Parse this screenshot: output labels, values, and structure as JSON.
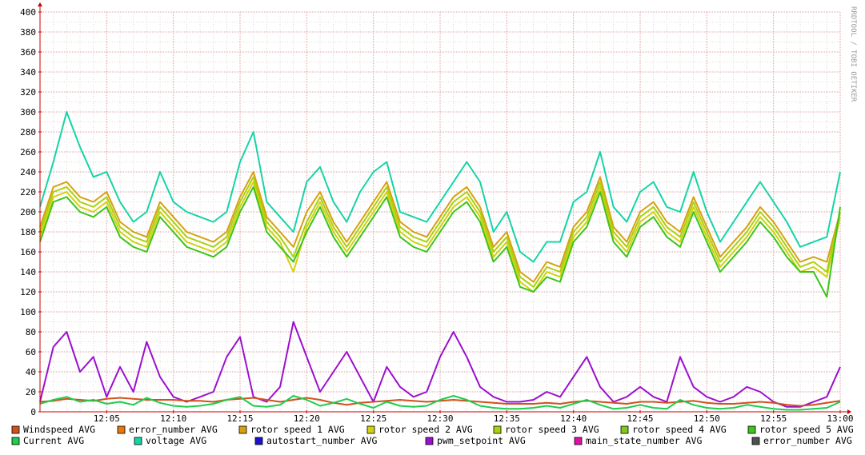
{
  "chart_data": {
    "type": "line",
    "watermark": "RRDTOOL / TOBI OETIKER",
    "ylim": [
      0,
      400
    ],
    "y_ticks": [
      0,
      20,
      40,
      60,
      80,
      100,
      120,
      140,
      160,
      180,
      200,
      220,
      240,
      260,
      280,
      300,
      320,
      340,
      360,
      380,
      400
    ],
    "y_tick_labels": [
      "0",
      "20",
      "40",
      "60",
      "80",
      "100",
      "120",
      "140",
      "160",
      "180",
      "200",
      "220",
      "240",
      "260",
      "280",
      "300",
      "320",
      "340",
      "360",
      "380",
      "400"
    ],
    "x_range_minutes": [
      0,
      60
    ],
    "x_ticks": [
      5,
      10,
      15,
      20,
      25,
      30,
      35,
      40,
      45,
      50,
      55,
      60
    ],
    "x_tick_labels": [
      "12:05",
      "12:10",
      "12:15",
      "12:20",
      "12:25",
      "12:30",
      "12:35",
      "12:40",
      "12:45",
      "12:50",
      "12:55",
      "13:00"
    ],
    "grid": true,
    "legend_position": "bottom",
    "legend": [
      {
        "label": "Windspeed AVG",
        "color": "#d2501e"
      },
      {
        "label": "error_number AVG",
        "color": "#e87510"
      },
      {
        "label": "rotor speed 1 AVG",
        "color": "#d6a10e"
      },
      {
        "label": "rotor speed 2 AVG",
        "color": "#d1d10f"
      },
      {
        "label": "rotor speed 3 AVG",
        "color": "#a9d10e"
      },
      {
        "label": "rotor speed 4 AVG",
        "color": "#7ccb14"
      },
      {
        "label": "rotor speed 5 AVG",
        "color": "#3ec41a"
      },
      {
        "label": "Current AVG",
        "color": "#1fcc4c"
      },
      {
        "label": "voltage AVG",
        "color": "#14d4a6"
      },
      {
        "label": "autostart_number AVG",
        "color": "#1f10cf"
      },
      {
        "label": "pwm_setpoint AVG",
        "color": "#9b10cf"
      },
      {
        "label": "main_state_number AVG",
        "color": "#e010a6"
      },
      {
        "label": "error_number AVG",
        "color": "#505050"
      }
    ],
    "series": [
      {
        "name": "voltage AVG",
        "color": "#14d4a6",
        "x": [
          0,
          1,
          2,
          3,
          4,
          5,
          6,
          7,
          8,
          9,
          10,
          11,
          12,
          13,
          14,
          15,
          16,
          17,
          18,
          19,
          20,
          21,
          22,
          23,
          24,
          25,
          26,
          27,
          28,
          29,
          30,
          31,
          32,
          33,
          34,
          35,
          36,
          37,
          38,
          39,
          40,
          41,
          42,
          43,
          44,
          45,
          46,
          47,
          48,
          49,
          50,
          51,
          52,
          53,
          54,
          55,
          56,
          57,
          58,
          59,
          60
        ],
        "values": [
          205,
          250,
          300,
          265,
          235,
          240,
          210,
          190,
          200,
          240,
          210,
          200,
          195,
          190,
          200,
          250,
          280,
          210,
          195,
          180,
          230,
          245,
          210,
          190,
          220,
          240,
          250,
          200,
          195,
          190,
          210,
          230,
          250,
          230,
          180,
          200,
          160,
          150,
          170,
          170,
          210,
          220,
          260,
          205,
          190,
          220,
          230,
          205,
          200,
          240,
          200,
          170,
          190,
          210,
          230,
          210,
          190,
          165,
          170,
          175,
          240
        ]
      },
      {
        "name": "rotor speed 1 AVG",
        "color": "#d6a10e",
        "x": [
          0,
          1,
          2,
          3,
          4,
          5,
          6,
          7,
          8,
          9,
          10,
          11,
          12,
          13,
          14,
          15,
          16,
          17,
          18,
          19,
          20,
          21,
          22,
          23,
          24,
          25,
          26,
          27,
          28,
          29,
          30,
          31,
          32,
          33,
          34,
          35,
          36,
          37,
          38,
          39,
          40,
          41,
          42,
          43,
          44,
          45,
          46,
          47,
          48,
          49,
          50,
          51,
          52,
          53,
          54,
          55,
          56,
          57,
          58,
          59,
          60
        ],
        "values": [
          185,
          225,
          230,
          215,
          210,
          220,
          190,
          180,
          175,
          210,
          195,
          180,
          175,
          170,
          180,
          215,
          240,
          195,
          180,
          165,
          200,
          220,
          190,
          170,
          190,
          210,
          230,
          190,
          180,
          175,
          195,
          215,
          225,
          205,
          165,
          180,
          140,
          130,
          150,
          145,
          185,
          200,
          235,
          185,
          170,
          200,
          210,
          190,
          180,
          215,
          185,
          155,
          170,
          185,
          205,
          190,
          170,
          150,
          155,
          150,
          200
        ]
      },
      {
        "name": "rotor speed 2 AVG",
        "color": "#d1d10f",
        "x": [
          0,
          1,
          2,
          3,
          4,
          5,
          6,
          7,
          8,
          9,
          10,
          11,
          12,
          13,
          14,
          15,
          16,
          17,
          18,
          19,
          20,
          21,
          22,
          23,
          24,
          25,
          26,
          27,
          28,
          29,
          30,
          31,
          32,
          33,
          34,
          35,
          36,
          37,
          38,
          39,
          40,
          41,
          42,
          43,
          44,
          45,
          46,
          47,
          48,
          49,
          50,
          51,
          52,
          53,
          54,
          55,
          56,
          57,
          58,
          59,
          60
        ],
        "values": [
          175,
          215,
          220,
          205,
          200,
          210,
          180,
          170,
          165,
          200,
          185,
          170,
          165,
          160,
          170,
          205,
          230,
          185,
          170,
          140,
          185,
          210,
          180,
          160,
          180,
          200,
          220,
          180,
          170,
          165,
          185,
          205,
          215,
          195,
          155,
          170,
          130,
          120,
          140,
          135,
          175,
          190,
          225,
          175,
          160,
          190,
          200,
          180,
          170,
          205,
          175,
          145,
          160,
          175,
          195,
          180,
          160,
          140,
          145,
          135,
          195
        ]
      },
      {
        "name": "rotor speed 3 AVG",
        "color": "#a9d10e",
        "x": [
          0,
          1,
          2,
          3,
          4,
          5,
          6,
          7,
          8,
          9,
          10,
          11,
          12,
          13,
          14,
          15,
          16,
          17,
          18,
          19,
          20,
          21,
          22,
          23,
          24,
          25,
          26,
          27,
          28,
          29,
          30,
          31,
          32,
          33,
          34,
          35,
          36,
          37,
          38,
          39,
          40,
          41,
          42,
          43,
          44,
          45,
          46,
          47,
          48,
          49,
          50,
          51,
          52,
          53,
          54,
          55,
          56,
          57,
          58,
          59,
          60
        ],
        "values": [
          180,
          220,
          225,
          210,
          205,
          215,
          185,
          175,
          170,
          205,
          190,
          175,
          170,
          165,
          175,
          210,
          235,
          190,
          175,
          155,
          190,
          215,
          185,
          165,
          185,
          205,
          225,
          185,
          175,
          170,
          190,
          210,
          220,
          200,
          160,
          175,
          135,
          125,
          145,
          140,
          180,
          195,
          230,
          180,
          165,
          195,
          205,
          185,
          175,
          210,
          180,
          150,
          165,
          180,
          200,
          185,
          165,
          145,
          150,
          140,
          200
        ]
      },
      {
        "name": "rotor speed 5 AVG",
        "color": "#3ec41a",
        "x": [
          0,
          1,
          2,
          3,
          4,
          5,
          6,
          7,
          8,
          9,
          10,
          11,
          12,
          13,
          14,
          15,
          16,
          17,
          18,
          19,
          20,
          21,
          22,
          23,
          24,
          25,
          26,
          27,
          28,
          29,
          30,
          31,
          32,
          33,
          34,
          35,
          36,
          37,
          38,
          39,
          40,
          41,
          42,
          43,
          44,
          45,
          46,
          47,
          48,
          49,
          50,
          51,
          52,
          53,
          54,
          55,
          56,
          57,
          58,
          59,
          60
        ],
        "values": [
          170,
          210,
          215,
          200,
          195,
          205,
          175,
          165,
          160,
          195,
          180,
          165,
          160,
          155,
          165,
          200,
          225,
          180,
          165,
          150,
          180,
          205,
          175,
          155,
          175,
          195,
          215,
          175,
          165,
          160,
          180,
          200,
          210,
          190,
          150,
          165,
          125,
          120,
          135,
          130,
          170,
          185,
          220,
          170,
          155,
          185,
          195,
          175,
          165,
          200,
          170,
          140,
          155,
          170,
          190,
          175,
          155,
          140,
          140,
          115,
          205
        ]
      },
      {
        "name": "pwm_setpoint AVG",
        "color": "#9b10cf",
        "x": [
          0,
          1,
          2,
          3,
          4,
          5,
          6,
          7,
          8,
          9,
          10,
          11,
          12,
          13,
          14,
          15,
          16,
          17,
          18,
          19,
          20,
          21,
          22,
          23,
          24,
          25,
          26,
          27,
          28,
          29,
          30,
          31,
          32,
          33,
          34,
          35,
          36,
          37,
          38,
          39,
          40,
          41,
          42,
          43,
          44,
          45,
          46,
          47,
          48,
          49,
          50,
          51,
          52,
          53,
          54,
          55,
          56,
          57,
          58,
          59,
          60
        ],
        "values": [
          10,
          65,
          80,
          40,
          55,
          15,
          45,
          20,
          70,
          35,
          15,
          10,
          15,
          20,
          55,
          75,
          15,
          10,
          25,
          90,
          55,
          20,
          40,
          60,
          35,
          10,
          45,
          25,
          15,
          20,
          55,
          80,
          55,
          25,
          15,
          10,
          10,
          12,
          20,
          15,
          35,
          55,
          25,
          10,
          15,
          25,
          15,
          10,
          55,
          25,
          15,
          10,
          15,
          25,
          20,
          10,
          5,
          5,
          10,
          15,
          45
        ]
      },
      {
        "name": "Windspeed AVG",
        "color": "#d2501e",
        "x": [
          0,
          1,
          2,
          3,
          4,
          5,
          6,
          7,
          8,
          9,
          10,
          11,
          12,
          13,
          14,
          15,
          16,
          17,
          18,
          19,
          20,
          21,
          22,
          23,
          24,
          25,
          26,
          27,
          28,
          29,
          30,
          31,
          32,
          33,
          34,
          35,
          36,
          37,
          38,
          39,
          40,
          41,
          42,
          43,
          44,
          45,
          46,
          47,
          48,
          49,
          50,
          51,
          52,
          53,
          54,
          55,
          56,
          57,
          58,
          59,
          60
        ],
        "values": [
          10,
          11,
          13,
          12,
          11,
          13,
          14,
          13,
          12,
          12,
          12,
          11,
          11,
          10,
          12,
          13,
          14,
          12,
          10,
          12,
          14,
          12,
          9,
          7,
          9,
          10,
          11,
          12,
          11,
          10,
          11,
          12,
          11,
          10,
          9,
          8,
          8,
          8,
          9,
          8,
          10,
          11,
          10,
          9,
          8,
          10,
          10,
          9,
          10,
          11,
          9,
          8,
          8,
          9,
          10,
          9,
          7,
          6,
          7,
          9,
          11
        ]
      },
      {
        "name": "Current AVG",
        "color": "#1fcc4c",
        "x": [
          0,
          1,
          2,
          3,
          4,
          5,
          6,
          7,
          8,
          9,
          10,
          11,
          12,
          13,
          14,
          15,
          16,
          17,
          18,
          19,
          20,
          21,
          22,
          23,
          24,
          25,
          26,
          27,
          28,
          29,
          30,
          31,
          32,
          33,
          34,
          35,
          36,
          37,
          38,
          39,
          40,
          41,
          42,
          43,
          44,
          45,
          46,
          47,
          48,
          49,
          50,
          51,
          52,
          53,
          54,
          55,
          56,
          57,
          58,
          59,
          60
        ],
        "values": [
          8,
          12,
          15,
          10,
          12,
          8,
          10,
          7,
          14,
          9,
          6,
          5,
          6,
          8,
          12,
          15,
          6,
          5,
          7,
          16,
          12,
          6,
          9,
          13,
          8,
          4,
          10,
          6,
          5,
          6,
          12,
          16,
          12,
          6,
          4,
          3,
          3,
          4,
          6,
          4,
          8,
          12,
          7,
          3,
          4,
          7,
          4,
          3,
          12,
          7,
          4,
          3,
          4,
          7,
          5,
          3,
          2,
          2,
          3,
          4,
          10
        ]
      }
    ]
  }
}
